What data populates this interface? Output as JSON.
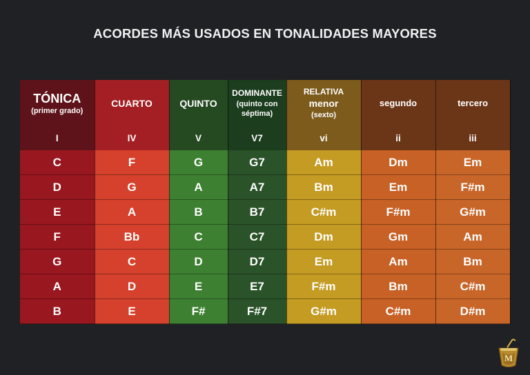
{
  "title": "ACORDES MÁS USADOS EN TONALIDADES MAYORES",
  "headers": [
    {
      "main": "TÓNICA",
      "sub": "(primer grado)",
      "degree": "I"
    },
    {
      "main": "CUARTO",
      "degree": "IV"
    },
    {
      "main": "QUINTO",
      "degree": "V"
    },
    {
      "main": "DOMINANTE",
      "sub": "(quinto con séptima)",
      "degree": "V7"
    },
    {
      "main": "RELATIVA",
      "main2": "menor",
      "sub": "(sexto)",
      "degree": "vi"
    },
    {
      "main": "segundo",
      "degree": "ii"
    },
    {
      "main": "tercero",
      "degree": "iii"
    }
  ],
  "rows": [
    [
      "C",
      "F",
      "G",
      "G7",
      "Am",
      "Dm",
      "Em"
    ],
    [
      "D",
      "G",
      "A",
      "A7",
      "Bm",
      "Em",
      "F#m"
    ],
    [
      "E",
      "A",
      "B",
      "B7",
      "C#m",
      "F#m",
      "G#m"
    ],
    [
      "F",
      "Bb",
      "C",
      "C7",
      "Dm",
      "Gm",
      "Am"
    ],
    [
      "G",
      "C",
      "D",
      "D7",
      "Em",
      "Am",
      "Bm"
    ],
    [
      "A",
      "D",
      "E",
      "E7",
      "F#m",
      "Bm",
      "C#m"
    ],
    [
      "B",
      "E",
      "F#",
      "F#7",
      "G#m",
      "C#m",
      "D#m"
    ]
  ],
  "colors": {
    "background": "#1f2124",
    "tonica": "#99171f",
    "cuarto": "#d5412c",
    "quinto": "#3e8032",
    "dominante": "#2b5329",
    "relativa": "#c49b23",
    "segundo": "#c76125",
    "tercero": "#c8662a"
  },
  "logo": {
    "icon": "mate-cup-logo",
    "letter": "M"
  }
}
